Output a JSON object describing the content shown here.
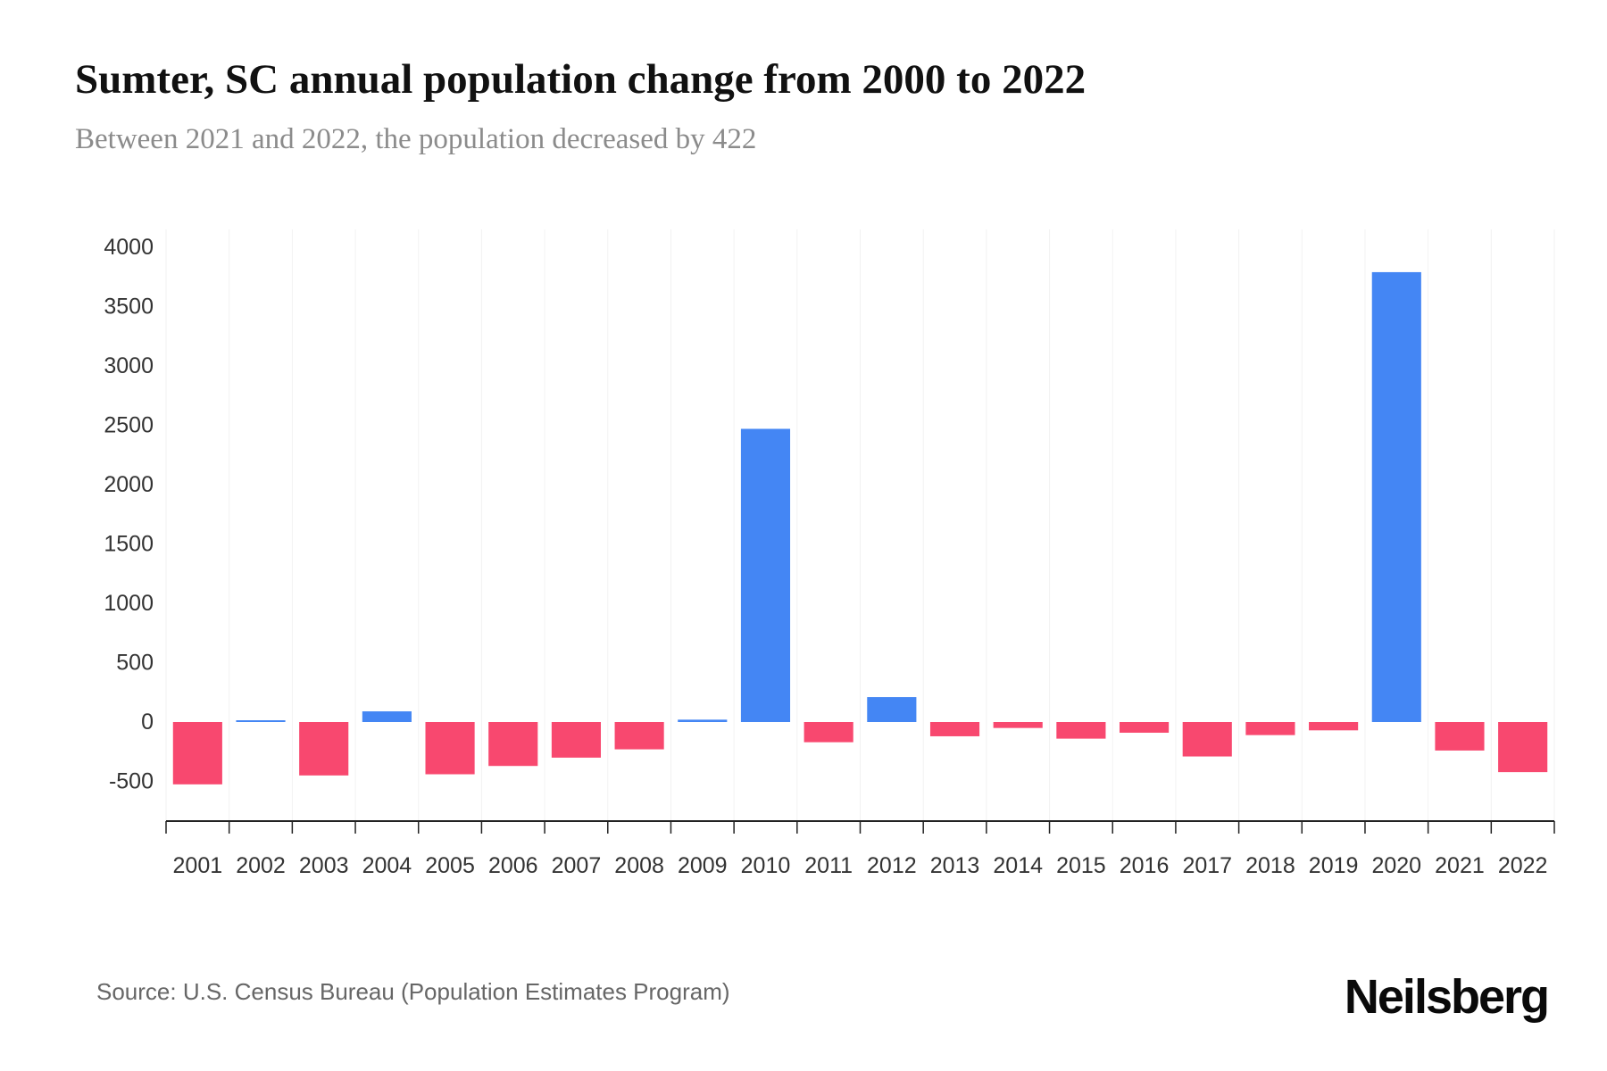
{
  "chart_data": {
    "type": "bar",
    "title": "Sumter, SC annual population change from 2000 to 2022",
    "subtitle": "Between 2021 and 2022, the population decreased by 422",
    "categories": [
      "2001",
      "2002",
      "2003",
      "2004",
      "2005",
      "2006",
      "2007",
      "2008",
      "2009",
      "2010",
      "2011",
      "2012",
      "2013",
      "2014",
      "2015",
      "2016",
      "2017",
      "2018",
      "2019",
      "2020",
      "2021",
      "2022"
    ],
    "values": [
      -525,
      15,
      -450,
      90,
      -440,
      -370,
      -300,
      -230,
      20,
      2470,
      -170,
      210,
      -120,
      -50,
      -140,
      -90,
      -290,
      -110,
      -70,
      3790,
      -240,
      -422
    ],
    "xlabel": "",
    "ylabel": "",
    "ylim": [
      -700,
      4000
    ],
    "yticks": [
      -500,
      0,
      500,
      1000,
      1500,
      2000,
      2500,
      3000,
      3500,
      4000
    ],
    "grid": "faint-vertical",
    "legend_position": "none",
    "colors": {
      "positive": "#4486F4",
      "negative": "#F8486F",
      "axis": "#222222",
      "tick_text": "#333333",
      "gridline": "#f2f2f2"
    }
  },
  "footer": {
    "source": "Source: U.S. Census Bureau (Population Estimates Program)",
    "logo": "Neilsberg"
  }
}
